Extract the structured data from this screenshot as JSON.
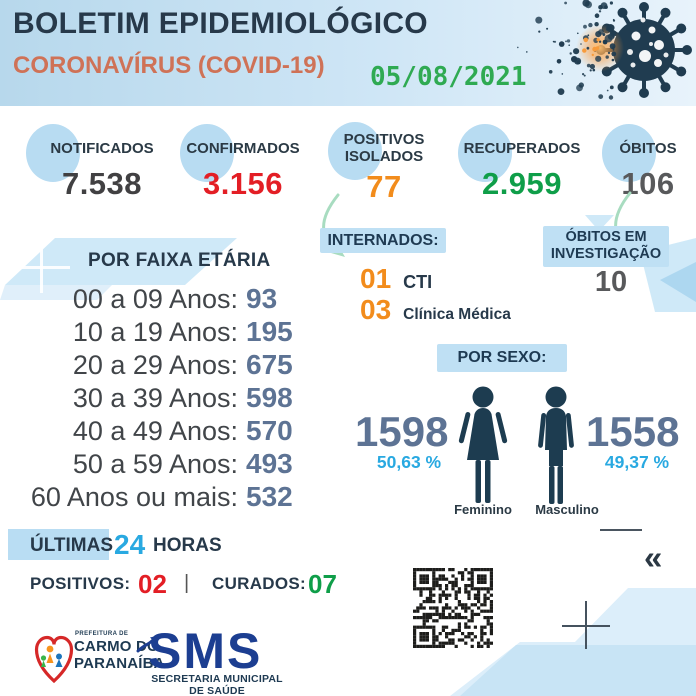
{
  "header": {
    "title": "BOLETIM EPIDEMIOLÓGICO",
    "subtitle": "CORONAVÍRUS (COVID-19)",
    "date": "05/08/2021"
  },
  "stats": {
    "notified": {
      "label": "NOTIFICADOS",
      "value": "7.538"
    },
    "confirmed": {
      "label": "CONFIRMADOS",
      "value": "3.156"
    },
    "isolated": {
      "label_line1": "POSITIVOS",
      "label_line2": "ISOLADOS",
      "value": "77"
    },
    "recovered": {
      "label": "RECUPERADOS",
      "value": "2.959"
    },
    "deaths": {
      "label": "ÓBITOS",
      "value": "106"
    }
  },
  "age_section": {
    "title": "POR FAIXA ETÁRIA",
    "rows": [
      {
        "label": "00 a 09 Anos:",
        "value": "93"
      },
      {
        "label": "10 a 19 Anos:",
        "value": "195"
      },
      {
        "label": "20 a 29 Anos:",
        "value": "675"
      },
      {
        "label": "30 a 39 Anos:",
        "value": "598"
      },
      {
        "label": "40 a 49 Anos:",
        "value": "570"
      },
      {
        "label": "50 a 59 Anos:",
        "value": "493"
      },
      {
        "label": "60 Anos ou mais:",
        "value": "532"
      }
    ]
  },
  "hospitalized": {
    "title": "INTERNADOS:",
    "cti": {
      "value": "01",
      "label": "CTI"
    },
    "clinic": {
      "value": "03",
      "label": "Clínica Médica"
    }
  },
  "deaths_investigation": {
    "title_line1": "ÓBITOS EM",
    "title_line2": "INVESTIGAÇÃO",
    "value": "10"
  },
  "by_sex": {
    "title": "POR SEXO:",
    "female": {
      "value": "1598",
      "percent": "50,63 %",
      "label": "Feminino"
    },
    "male": {
      "value": "1558",
      "percent": "49,37 %",
      "label": "Masculino"
    }
  },
  "last_24h": {
    "word_highlight": "ÚLTIMAS",
    "number": "24",
    "word_suffix": "HORAS",
    "positives_label": "POSITIVOS:",
    "positives_value": "02",
    "divider": "|",
    "cured_label": "CURADOS:",
    "cured_value": "07"
  },
  "footer": {
    "prefecture": {
      "overline": "PREFEITURA DE",
      "name_line1": "CARMO DO",
      "name_line2": "PARANAÍBA"
    },
    "health_dept": {
      "acronym": "SMS",
      "name_line1": "SECRETARIA MUNICIPAL",
      "name_line2": "DE SAÚDE"
    }
  },
  "icons": {
    "double_chevron_left": "«"
  },
  "colors": {
    "header_gradient_start": "#b7d8ec",
    "header_gradient_end": "#e8f3fb",
    "title_navy": "#27394a",
    "subtitle_coral": "#cf7257",
    "date_green": "#2faa52",
    "accent_light_blue": "#bfe0f4",
    "value_dark": "#414042",
    "value_red": "#e31e25",
    "value_orange": "#f28c1c",
    "value_green": "#0f9e49",
    "value_gray": "#58595b",
    "value_slate": "#5d7394",
    "percent_blue": "#29a9e1",
    "figure_navy": "#1d3c50",
    "sms_blue": "#1c3e91",
    "logo_red": "#d62828",
    "arrow_green": "#a8dcc0"
  }
}
